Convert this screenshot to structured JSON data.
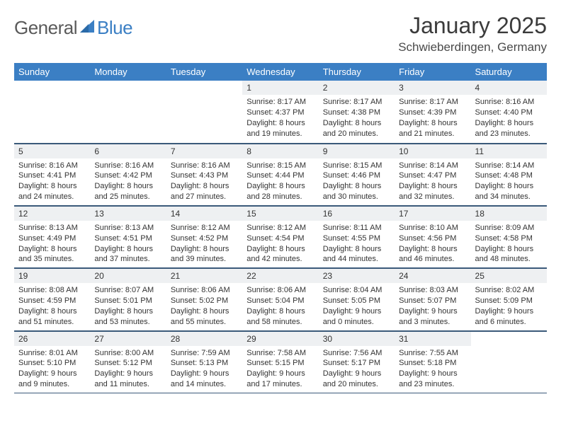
{
  "brand": {
    "name_part1": "General",
    "name_part2": "Blue",
    "text_color": "#5a5a5a",
    "accent_color": "#3b7fc4"
  },
  "title": {
    "month": "January 2025",
    "location": "Schwieberdingen, Germany",
    "month_fontsize": 32,
    "location_fontsize": 17
  },
  "colors": {
    "header_bg": "#3b7fc4",
    "header_text": "#ffffff",
    "daynum_bg": "#eef0f2",
    "rule": "#3b5a7a",
    "body_text": "#333333",
    "page_bg": "#ffffff"
  },
  "weekdays": [
    "Sunday",
    "Monday",
    "Tuesday",
    "Wednesday",
    "Thursday",
    "Friday",
    "Saturday"
  ],
  "weeks": [
    [
      null,
      null,
      null,
      {
        "n": "1",
        "sr": "8:17 AM",
        "ss": "4:37 PM",
        "dl": "8 hours and 19 minutes."
      },
      {
        "n": "2",
        "sr": "8:17 AM",
        "ss": "4:38 PM",
        "dl": "8 hours and 20 minutes."
      },
      {
        "n": "3",
        "sr": "8:17 AM",
        "ss": "4:39 PM",
        "dl": "8 hours and 21 minutes."
      },
      {
        "n": "4",
        "sr": "8:16 AM",
        "ss": "4:40 PM",
        "dl": "8 hours and 23 minutes."
      }
    ],
    [
      {
        "n": "5",
        "sr": "8:16 AM",
        "ss": "4:41 PM",
        "dl": "8 hours and 24 minutes."
      },
      {
        "n": "6",
        "sr": "8:16 AM",
        "ss": "4:42 PM",
        "dl": "8 hours and 25 minutes."
      },
      {
        "n": "7",
        "sr": "8:16 AM",
        "ss": "4:43 PM",
        "dl": "8 hours and 27 minutes."
      },
      {
        "n": "8",
        "sr": "8:15 AM",
        "ss": "4:44 PM",
        "dl": "8 hours and 28 minutes."
      },
      {
        "n": "9",
        "sr": "8:15 AM",
        "ss": "4:46 PM",
        "dl": "8 hours and 30 minutes."
      },
      {
        "n": "10",
        "sr": "8:14 AM",
        "ss": "4:47 PM",
        "dl": "8 hours and 32 minutes."
      },
      {
        "n": "11",
        "sr": "8:14 AM",
        "ss": "4:48 PM",
        "dl": "8 hours and 34 minutes."
      }
    ],
    [
      {
        "n": "12",
        "sr": "8:13 AM",
        "ss": "4:49 PM",
        "dl": "8 hours and 35 minutes."
      },
      {
        "n": "13",
        "sr": "8:13 AM",
        "ss": "4:51 PM",
        "dl": "8 hours and 37 minutes."
      },
      {
        "n": "14",
        "sr": "8:12 AM",
        "ss": "4:52 PM",
        "dl": "8 hours and 39 minutes."
      },
      {
        "n": "15",
        "sr": "8:12 AM",
        "ss": "4:54 PM",
        "dl": "8 hours and 42 minutes."
      },
      {
        "n": "16",
        "sr": "8:11 AM",
        "ss": "4:55 PM",
        "dl": "8 hours and 44 minutes."
      },
      {
        "n": "17",
        "sr": "8:10 AM",
        "ss": "4:56 PM",
        "dl": "8 hours and 46 minutes."
      },
      {
        "n": "18",
        "sr": "8:09 AM",
        "ss": "4:58 PM",
        "dl": "8 hours and 48 minutes."
      }
    ],
    [
      {
        "n": "19",
        "sr": "8:08 AM",
        "ss": "4:59 PM",
        "dl": "8 hours and 51 minutes."
      },
      {
        "n": "20",
        "sr": "8:07 AM",
        "ss": "5:01 PM",
        "dl": "8 hours and 53 minutes."
      },
      {
        "n": "21",
        "sr": "8:06 AM",
        "ss": "5:02 PM",
        "dl": "8 hours and 55 minutes."
      },
      {
        "n": "22",
        "sr": "8:06 AM",
        "ss": "5:04 PM",
        "dl": "8 hours and 58 minutes."
      },
      {
        "n": "23",
        "sr": "8:04 AM",
        "ss": "5:05 PM",
        "dl": "9 hours and 0 minutes."
      },
      {
        "n": "24",
        "sr": "8:03 AM",
        "ss": "5:07 PM",
        "dl": "9 hours and 3 minutes."
      },
      {
        "n": "25",
        "sr": "8:02 AM",
        "ss": "5:09 PM",
        "dl": "9 hours and 6 minutes."
      }
    ],
    [
      {
        "n": "26",
        "sr": "8:01 AM",
        "ss": "5:10 PM",
        "dl": "9 hours and 9 minutes."
      },
      {
        "n": "27",
        "sr": "8:00 AM",
        "ss": "5:12 PM",
        "dl": "9 hours and 11 minutes."
      },
      {
        "n": "28",
        "sr": "7:59 AM",
        "ss": "5:13 PM",
        "dl": "9 hours and 14 minutes."
      },
      {
        "n": "29",
        "sr": "7:58 AM",
        "ss": "5:15 PM",
        "dl": "9 hours and 17 minutes."
      },
      {
        "n": "30",
        "sr": "7:56 AM",
        "ss": "5:17 PM",
        "dl": "9 hours and 20 minutes."
      },
      {
        "n": "31",
        "sr": "7:55 AM",
        "ss": "5:18 PM",
        "dl": "9 hours and 23 minutes."
      },
      null
    ]
  ],
  "labels": {
    "sunrise": "Sunrise:",
    "sunset": "Sunset:",
    "daylight": "Daylight:"
  }
}
